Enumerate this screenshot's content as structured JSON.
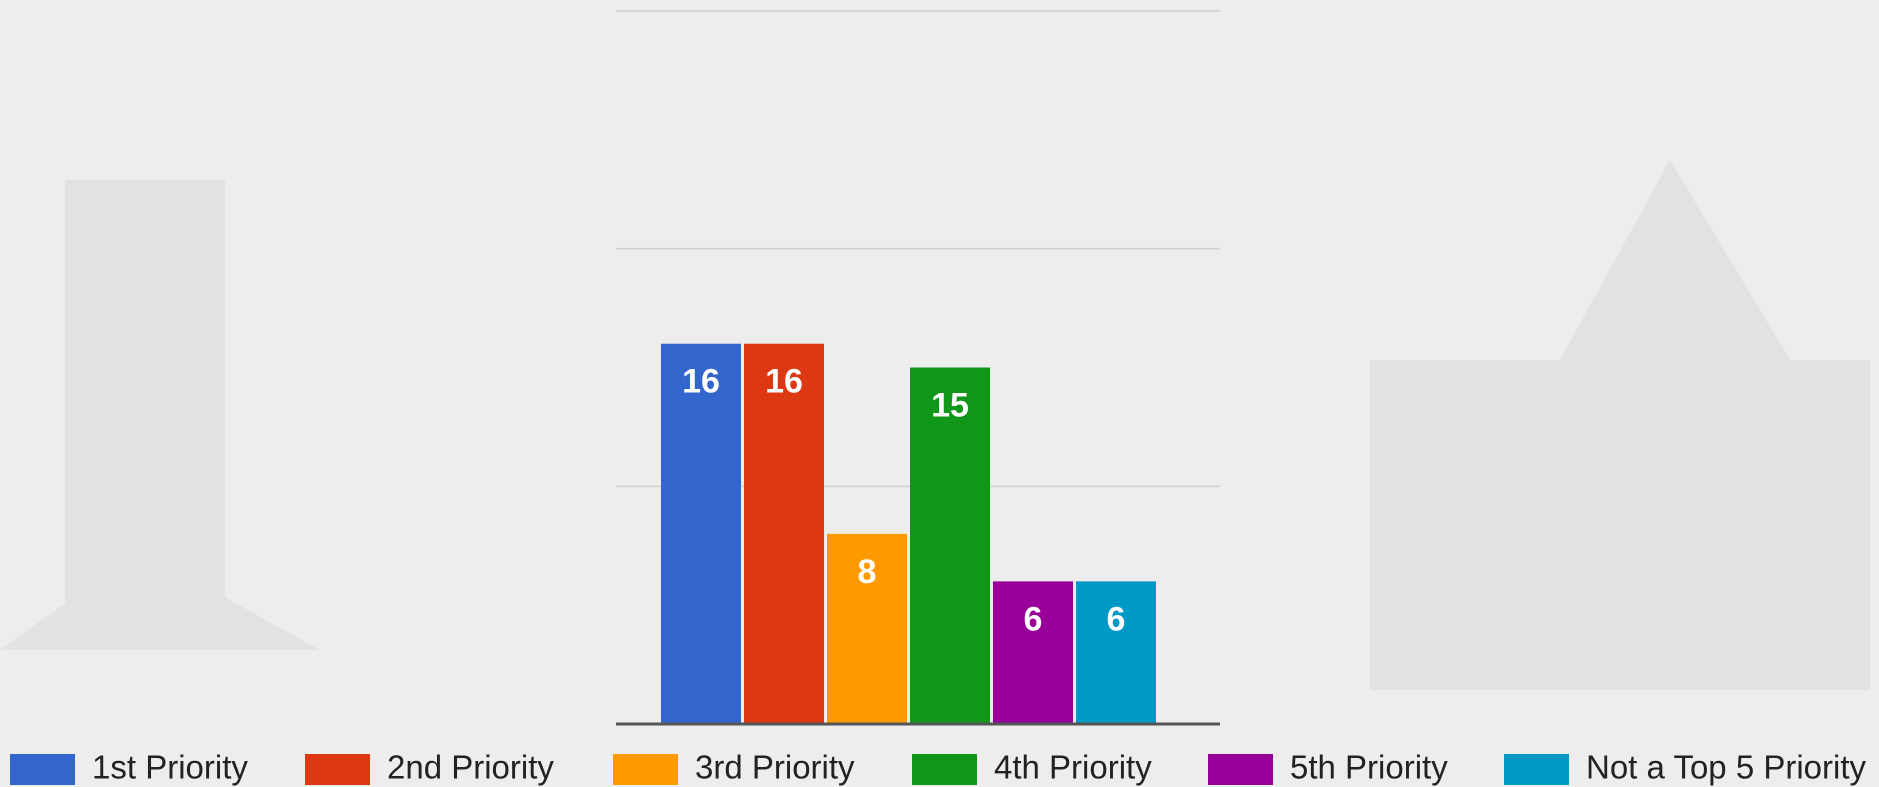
{
  "chart_data": {
    "type": "bar",
    "categories": [
      "1st Priority",
      "2nd Priority",
      "3rd Priority",
      "4th Priority",
      "5th Priority",
      "Not a Top 5 Priority"
    ],
    "colors": [
      "#3366cc",
      "#dc3912",
      "#ff9900",
      "#109618",
      "#990099",
      "#0099c6"
    ],
    "values": [
      16,
      16,
      8,
      15,
      6,
      6
    ],
    "ylim": [
      0,
      30
    ],
    "yticks": [
      0,
      10,
      20,
      30
    ],
    "grid": true,
    "legend": "bottom"
  }
}
